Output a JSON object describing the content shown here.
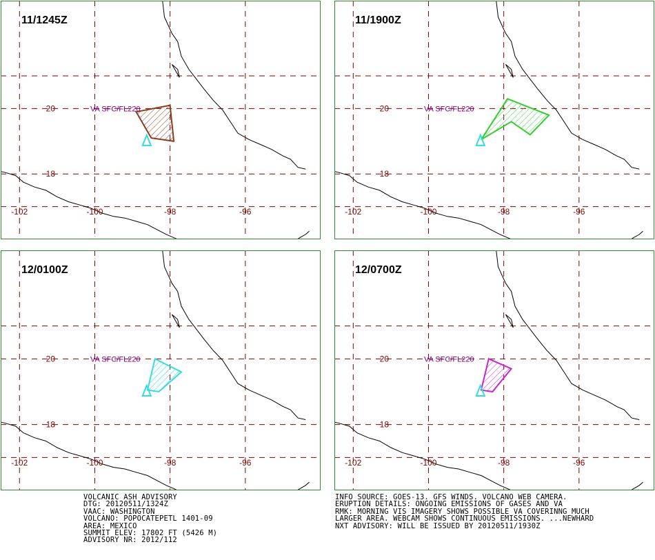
{
  "panels": [
    {
      "id": "p1",
      "time": "11/1245Z",
      "area_label": "VA SFC/FL220",
      "ash": {
        "type": "ash-cloud-forecast",
        "color": "#8a3b1e",
        "polygon": [
          [
            -98.9,
            19.9
          ],
          [
            -98.0,
            20.1
          ],
          [
            -97.9,
            19.0
          ],
          [
            -98.5,
            19.1
          ]
        ]
      }
    },
    {
      "id": "p2",
      "time": "11/1900Z",
      "area_label": "VA SFC/FL220",
      "ash": {
        "type": "ash-cloud-forecast",
        "color": "#33cc33",
        "polygon": [
          [
            -98.6,
            19.05
          ],
          [
            -97.9,
            20.3
          ],
          [
            -96.8,
            19.8
          ],
          [
            -97.3,
            19.2
          ],
          [
            -97.8,
            19.6
          ]
        ]
      }
    },
    {
      "id": "p3",
      "time": "12/0100Z",
      "area_label": "VA SFC/FL220",
      "ash": {
        "type": "ash-cloud-forecast",
        "color": "#33dddd",
        "polygon": [
          [
            -98.6,
            19.05
          ],
          [
            -98.4,
            20.0
          ],
          [
            -97.7,
            19.6
          ],
          [
            -98.3,
            19.0
          ]
        ]
      }
    },
    {
      "id": "p4",
      "time": "12/0700Z",
      "area_label": "VA SFC/FL220",
      "ash": {
        "type": "ash-cloud-forecast",
        "color": "#cc22cc",
        "polygon": [
          [
            -98.6,
            19.05
          ],
          [
            -98.4,
            20.0
          ],
          [
            -97.8,
            19.7
          ],
          [
            -98.3,
            19.0
          ]
        ]
      }
    }
  ],
  "map": {
    "lon_range": [
      -102.5,
      -94.0
    ],
    "lat_range": [
      16.0,
      23.3
    ],
    "lon_ticks": [
      -102,
      -100,
      -98,
      -96
    ],
    "lat_ticks": [
      20,
      18
    ],
    "lon_tick_labels": [
      "-102",
      "-100",
      "-98",
      "-96"
    ],
    "lat_tick_labels": [
      "20",
      "18"
    ],
    "volcano": {
      "name": "POPOCATEPETL",
      "lon": -98.62,
      "lat": 19.02,
      "symbol": "volcano-triangle-icon"
    },
    "colors": {
      "grid": "#800000",
      "coast": "#000000",
      "frame": "#2e8b2e",
      "label": "#800080",
      "volcano": "#33dddd"
    }
  },
  "advisory": {
    "left": [
      "VOLCANIC ASH ADVISORY",
      "DTG: 20120511/1324Z",
      "VAAC: WASHINGTON",
      "VOLCANO: POPOCATEPETL 1401-09",
      "AREA: MEXICO",
      "SUMMIT ELEV: 17802 FT (5426 M)",
      "ADVISORY NR: 2012/112"
    ],
    "right": [
      "INFO SOURCE: GOES-13. GFS WINDS. VOLCANO WEB CAMERA.",
      "ERUPTION DETAILS: ONGOING EMISSIONS OF GASES AND VA",
      "RMK: MORNING VIS IMAGERY SHOWS POSSIBLE VA COVERINNG MUCH",
      "LARGER AREA. WEBCAM SHOWS CONTINUOUS EMISSIONS. ...NEWHARD",
      "NXT ADVISORY: WILL BE ISSUED BY 20120511/1930Z"
    ]
  }
}
